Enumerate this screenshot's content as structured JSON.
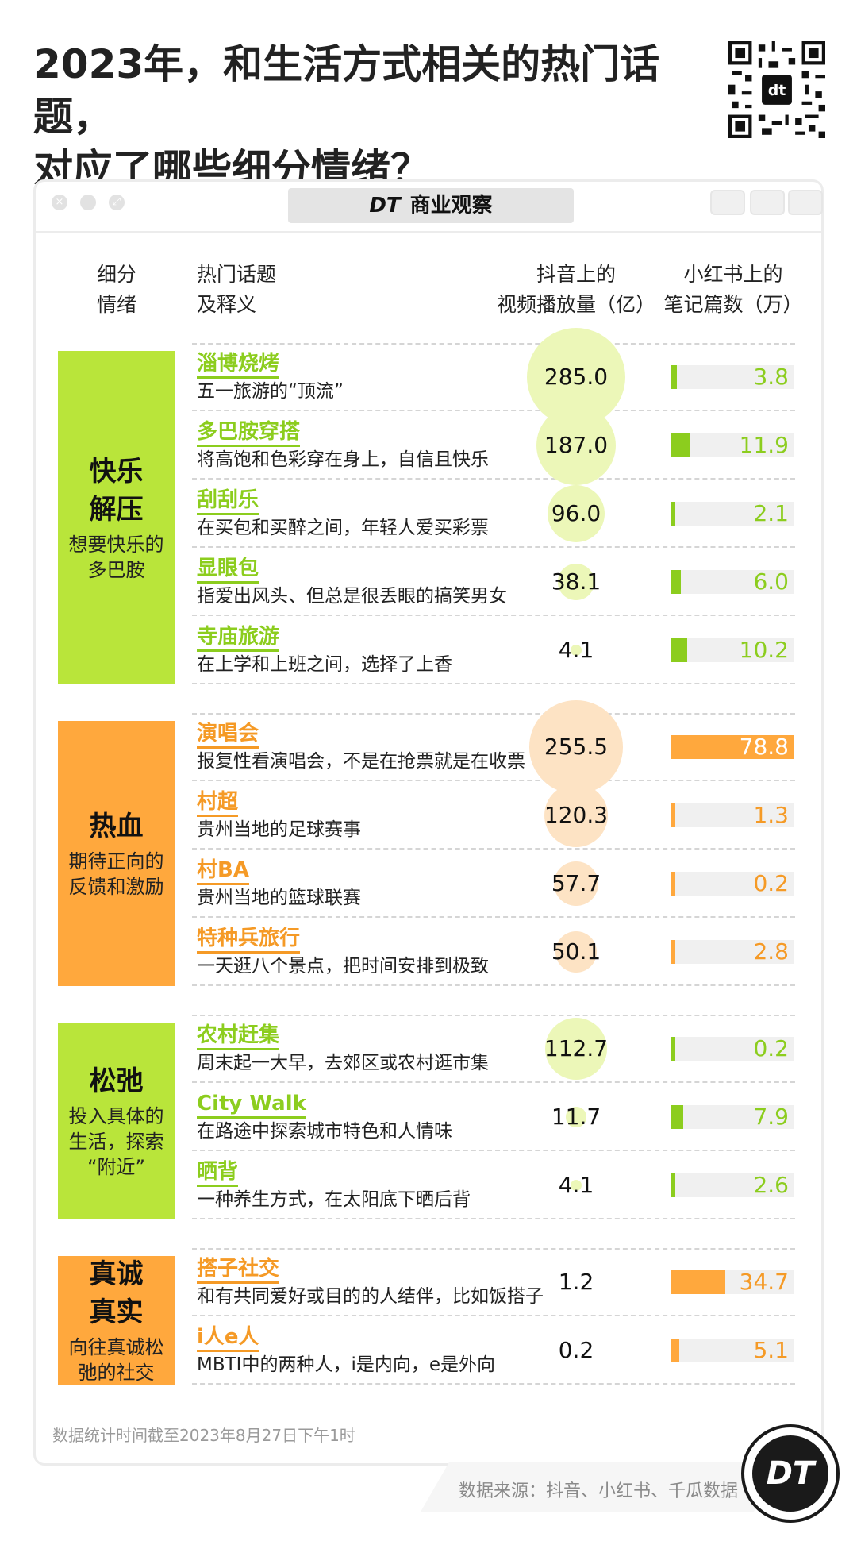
{
  "title_line1": "2023年，和生活方式相关的热门话题，",
  "title_line2": "对应了哪些细分情绪？",
  "brand": {
    "logo": "DT",
    "name": "商业观察"
  },
  "icons": {
    "qr": "qr-code-icon",
    "badge": "dt-logo-icon"
  },
  "headers": {
    "emotion": [
      "细分",
      "情绪"
    ],
    "topic": [
      "热门话题",
      "及释义"
    ],
    "douyin": [
      "抖音上的",
      "视频播放量（亿）"
    ],
    "xhs": [
      "小红书上的",
      "笔记篇数（万）"
    ]
  },
  "colors": {
    "green": "#b9e53a",
    "green_text": "#8ccd1e",
    "orange": "#ffa83d",
    "orange_text": "#f59a26"
  },
  "chart_data": {
    "type": "table",
    "title": "2023年，和生活方式相关的热门话题，对应了哪些细分情绪？",
    "columns": [
      "细分情绪",
      "热门话题及释义",
      "抖音上的视频播放量（亿）",
      "小红书上的笔记篇数（万）"
    ],
    "groups": [
      {
        "emotion": "快乐解压",
        "emotion_lines": [
          "快乐",
          "解压"
        ],
        "desc_lines": [
          "想要快乐的",
          "多巴胺"
        ],
        "color": "green",
        "rows": [
          {
            "topic": "淄博烧烤",
            "explain": "五一旅游的“顶流”",
            "douyin": 285.0,
            "douyin_label": "285.0",
            "xhs": 3.8,
            "xhs_label": "3.8"
          },
          {
            "topic": "多巴胺穿搭",
            "explain": "将高饱和色彩穿在身上，自信且快乐",
            "douyin": 187.0,
            "douyin_label": "187.0",
            "xhs": 11.9,
            "xhs_label": "11.9"
          },
          {
            "topic": "刮刮乐",
            "explain": "在买包和买醉之间，年轻人爱买彩票",
            "douyin": 96.0,
            "douyin_label": "96.0",
            "xhs": 2.1,
            "xhs_label": "2.1"
          },
          {
            "topic": "显眼包",
            "explain": "指爱出风头、但总是很丢眼的搞笑男女",
            "douyin": 38.1,
            "douyin_label": "38.1",
            "xhs": 6.0,
            "xhs_label": "6.0"
          },
          {
            "topic": "寺庙旅游",
            "explain": "在上学和上班之间，选择了上香",
            "douyin": 4.1,
            "douyin_label": "4.1",
            "xhs": 10.2,
            "xhs_label": "10.2"
          }
        ]
      },
      {
        "emotion": "热血",
        "emotion_lines": [
          "热血"
        ],
        "desc_lines": [
          "期待正向的",
          "反馈和激励"
        ],
        "color": "orange",
        "rows": [
          {
            "topic": "演唱会",
            "explain": "报复性看演唱会，不是在抢票就是在收票",
            "douyin": 255.5,
            "douyin_label": "255.5",
            "xhs": 78.8,
            "xhs_label": "78.8"
          },
          {
            "topic": "村超",
            "explain": "贵州当地的足球赛事",
            "douyin": 120.3,
            "douyin_label": "120.3",
            "xhs": 1.3,
            "xhs_label": "1.3"
          },
          {
            "topic": "村BA",
            "explain": "贵州当地的篮球联赛",
            "douyin": 57.7,
            "douyin_label": "57.7",
            "xhs": 0.2,
            "xhs_label": "0.2"
          },
          {
            "topic": "特种兵旅行",
            "explain": "一天逛八个景点，把时间安排到极致",
            "douyin": 50.1,
            "douyin_label": "50.1",
            "xhs": 2.8,
            "xhs_label": "2.8"
          }
        ]
      },
      {
        "emotion": "松弛",
        "emotion_lines": [
          "松弛"
        ],
        "desc_lines": [
          "投入具体的",
          "生活，探索",
          "“附近”"
        ],
        "color": "green",
        "rows": [
          {
            "topic": "农村赶集",
            "explain": "周末起一大早，去郊区或农村逛市集",
            "douyin": 112.7,
            "douyin_label": "112.7",
            "xhs": 0.2,
            "xhs_label": "0.2"
          },
          {
            "topic": "City Walk",
            "explain": "在路途中探索城市特色和人情味",
            "douyin": 11.7,
            "douyin_label": "11.7",
            "xhs": 7.9,
            "xhs_label": "7.9"
          },
          {
            "topic": "晒背",
            "explain": "一种养生方式，在太阳底下晒后背",
            "douyin": 4.1,
            "douyin_label": "4.1",
            "xhs": 2.6,
            "xhs_label": "2.6"
          }
        ]
      },
      {
        "emotion": "真诚真实",
        "emotion_lines": [
          "真诚",
          "真实"
        ],
        "desc_lines": [
          "向往真诚松",
          "弛的社交"
        ],
        "color": "orange",
        "rows": [
          {
            "topic": "搭子社交",
            "explain": "和有共同爱好或目的的人结伴，比如饭搭子",
            "douyin": 1.2,
            "douyin_label": "1.2",
            "xhs": 34.7,
            "xhs_label": "34.7"
          },
          {
            "topic": "i人e人",
            "explain": "MBTI中的两种人，i是内向，e是外向",
            "douyin": 0.2,
            "douyin_label": "0.2",
            "xhs": 5.1,
            "xhs_label": "5.1"
          }
        ]
      }
    ],
    "douyin_max": 285.0,
    "xhs_max": 78.8
  },
  "footnote": "数据统计时间截至2023年8月27日下午1时",
  "source": "数据来源：抖音、小红书、千瓜数据"
}
